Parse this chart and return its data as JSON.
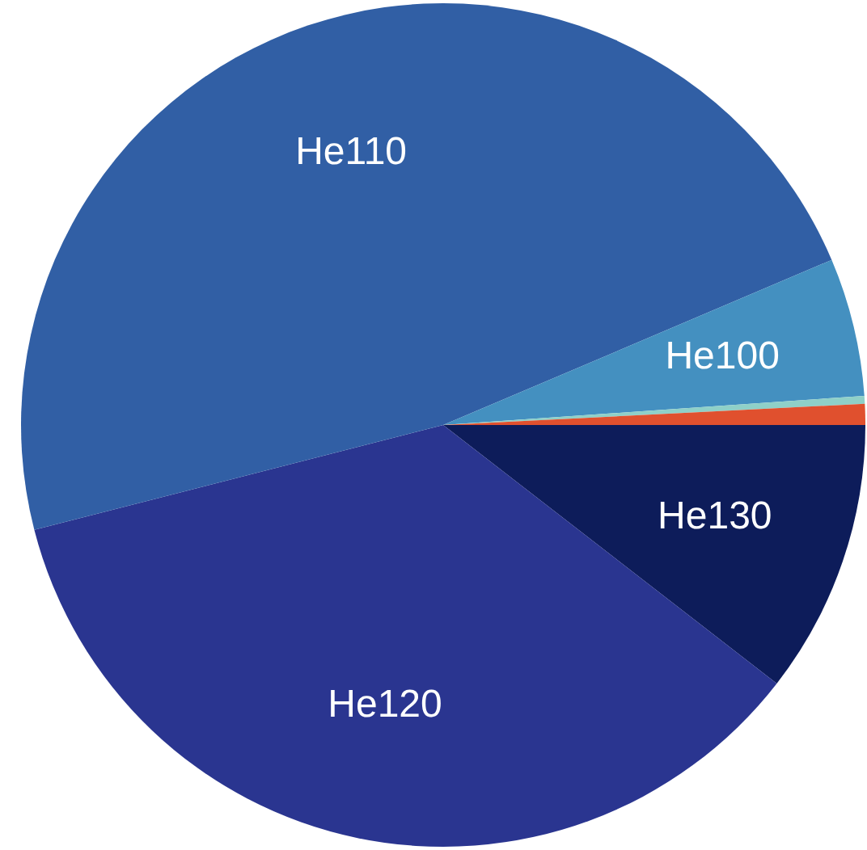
{
  "chart_data": {
    "type": "pie",
    "categories": [
      "He130",
      "He120",
      "He110",
      "He100",
      null,
      null
    ],
    "values": [
      10.5,
      35.5,
      47.6,
      5.3,
      0.3,
      0.8
    ],
    "colors": [
      "#0d1c5a",
      "#2a3590",
      "#315fa5",
      "#4490c0",
      "#8fd0c8",
      "#e0502e"
    ],
    "legend": false
  }
}
